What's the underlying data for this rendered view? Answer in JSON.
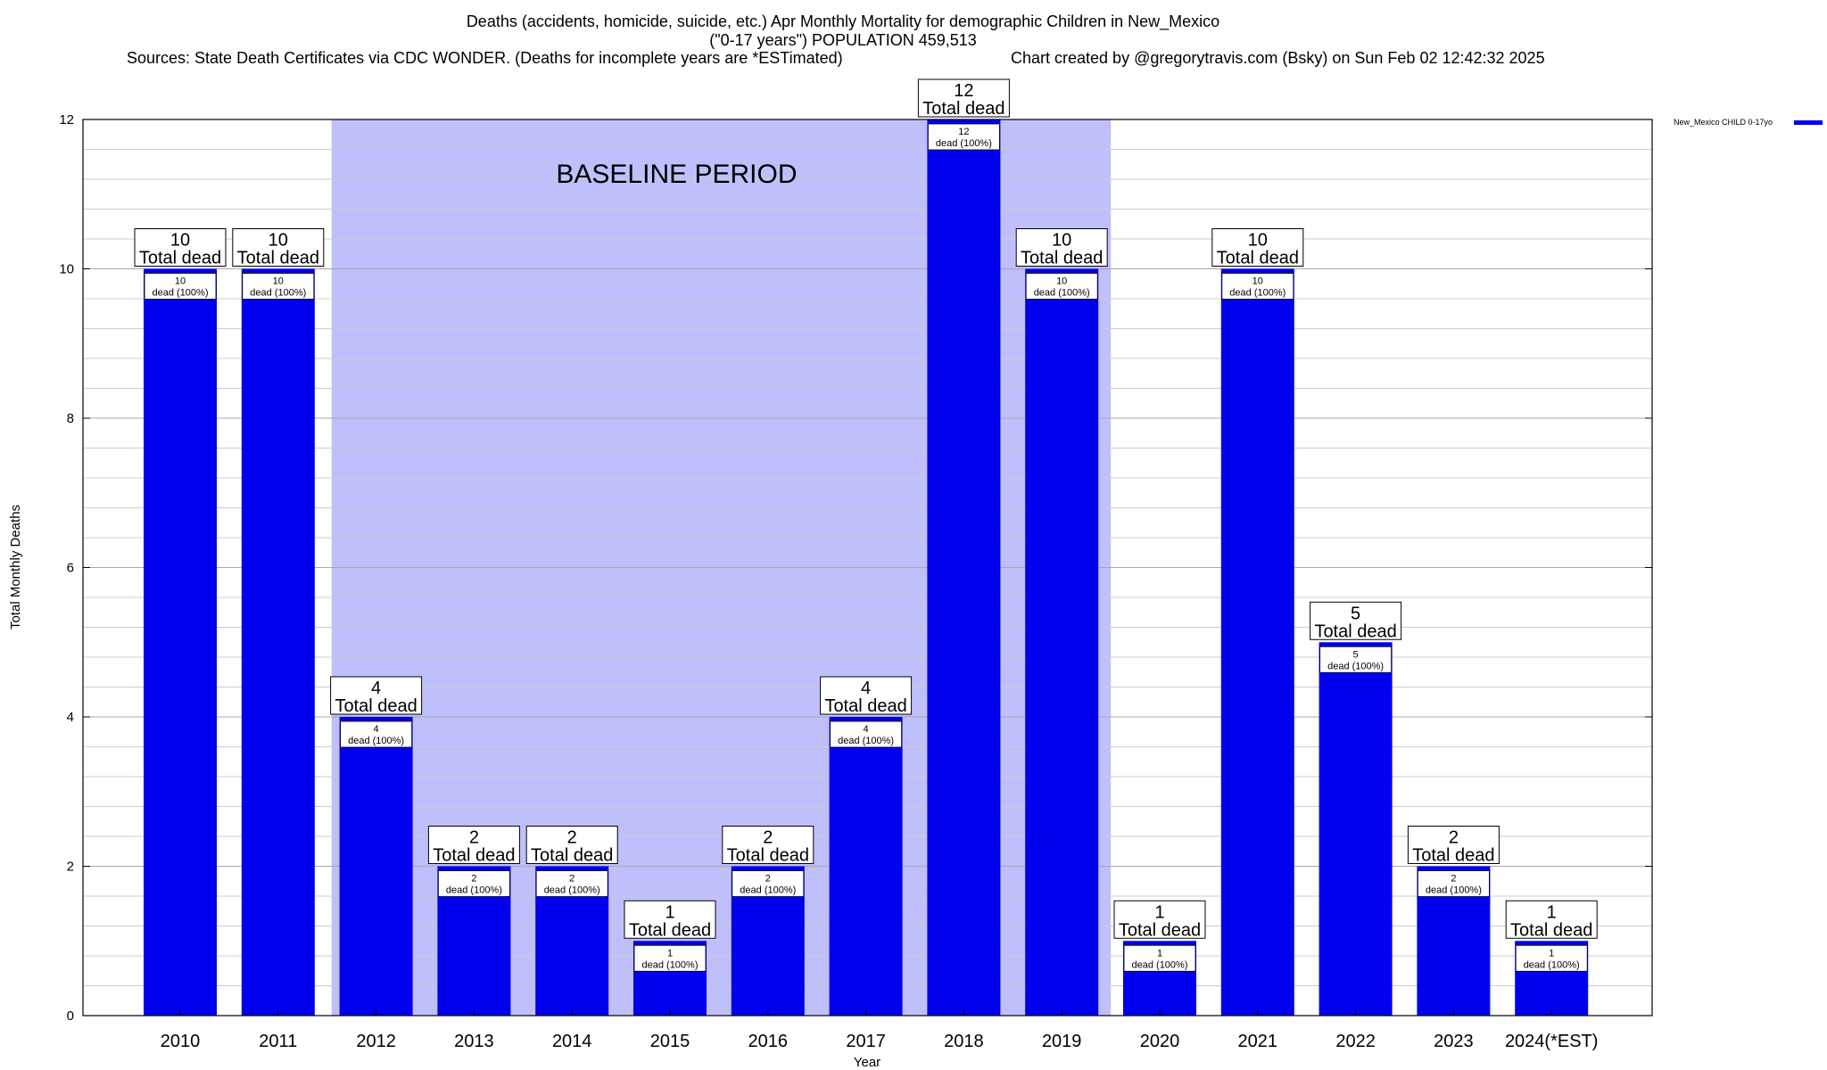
{
  "chart_data": {
    "type": "bar",
    "title_lines": [
      "Deaths (accidents, homicide, suicide, etc.) Apr Monthly Mortality for demographic Children in New_Mexico",
      "(\"0-17 years\") POPULATION 459,513"
    ],
    "source_text": "Sources: State Death Certificates via CDC WONDER. (Deaths for incomplete years are *ESTimated)",
    "credit_text": "Chart created by @gregorytravis.com (Bsky) on Sun Feb 02 12:42:32 2025",
    "xlabel": "Year",
    "ylabel": "Total Monthly Deaths",
    "ylim": [
      0,
      12
    ],
    "y_ticks": [
      0,
      2,
      4,
      6,
      8,
      10,
      12
    ],
    "y_minor_step": 0.4,
    "categories": [
      "2010",
      "2011",
      "2012",
      "2013",
      "2014",
      "2015",
      "2016",
      "2017",
      "2018",
      "2019",
      "2020",
      "2021",
      "2022",
      "2023",
      "2024(*EST)"
    ],
    "series": [
      {
        "name": "New_Mexico CHILD 0-17yo",
        "color": "#0000ee",
        "values": [
          10,
          10,
          4,
          2,
          2,
          1,
          2,
          4,
          12,
          10,
          1,
          10,
          5,
          2,
          1
        ]
      }
    ],
    "top_label_suffix": "Total dead",
    "inner_label_suffix": "dead (100%)",
    "baseline_period": {
      "label": "BASELINE PERIOD",
      "start_category": "2012",
      "end_category": "2019",
      "color": "#bfbffb"
    },
    "grid": true,
    "legend_position": "top-right"
  }
}
